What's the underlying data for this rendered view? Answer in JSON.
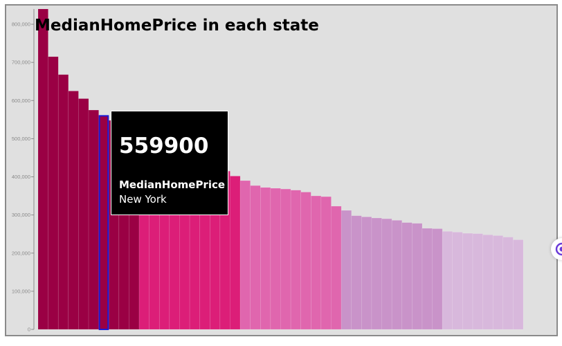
{
  "chart_data": {
    "type": "bar",
    "title": "MedianHomePrice in each state",
    "xlabel": "",
    "ylabel": "",
    "ylim": [
      0,
      840000
    ],
    "yticks": [
      0,
      100000,
      200000,
      300000,
      400000,
      500000,
      600000,
      700000,
      800000
    ],
    "ytick_labels": [
      "0",
      "100,000",
      "200,000",
      "300,000",
      "400,000",
      "500,000",
      "600,000",
      "700,000",
      "800,000"
    ],
    "series": [
      {
        "name": "MedianHomePrice",
        "values": [
          840000,
          715000,
          668000,
          625000,
          605000,
          575000,
          559900,
          548000,
          535000,
          520000,
          505000,
          490000,
          480000,
          470000,
          460000,
          450000,
          440000,
          430000,
          415000,
          402000,
          390000,
          377000,
          372000,
          370000,
          368000,
          365000,
          360000,
          350000,
          348000,
          323000,
          312000,
          298000,
          295000,
          292000,
          290000,
          286000,
          280000,
          278000,
          265000,
          264000,
          257000,
          255000,
          252000,
          251000,
          248000,
          246000,
          242000,
          235000
        ]
      }
    ],
    "color_groups": [
      {
        "from": 0,
        "to": 10,
        "color": "#9a0044"
      },
      {
        "from": 10,
        "to": 20,
        "color": "#dc1e78"
      },
      {
        "from": 20,
        "to": 30,
        "color": "#e066ae"
      },
      {
        "from": 30,
        "to": 40,
        "color": "#c993c9"
      },
      {
        "from": 40,
        "to": 48,
        "color": "#d8b8dc"
      }
    ],
    "highlight_index": 6,
    "tooltip": {
      "value": "559900",
      "measure": "MedianHomePrice",
      "category": "New York"
    }
  },
  "icons": {
    "side_button": "target-icon"
  },
  "colors": {
    "highlight_outline": "#1a1ad6",
    "background": "#e0e0e0"
  }
}
